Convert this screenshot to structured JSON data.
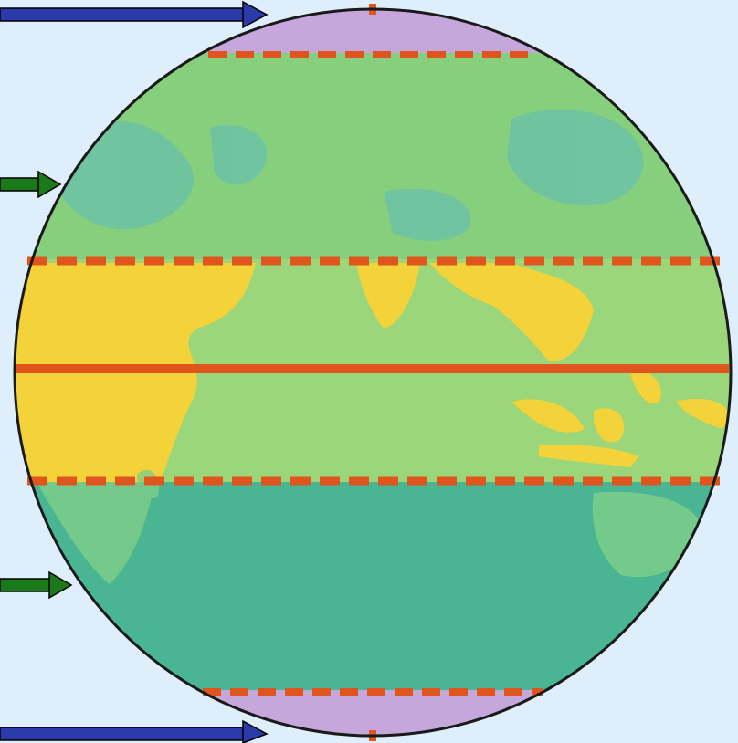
{
  "colors": {
    "background": "#dfeefb",
    "polar_zone": "#c6a7dc",
    "temperate_north": "#86cf7c",
    "tropical_zone": "#f4d23a",
    "temperate_south": "#49b593",
    "land_north": "#6fc3a8",
    "land_tropics": "#98d277",
    "equator_line": "#e0541e",
    "tropic_dashes": "#e0541e",
    "outline": "#1a1a1a",
    "arrow_blue": "#2a3aa8",
    "arrow_green": "#1a7a1a"
  },
  "icons": {
    "pointer_arrow": "arrow-right-icon"
  }
}
